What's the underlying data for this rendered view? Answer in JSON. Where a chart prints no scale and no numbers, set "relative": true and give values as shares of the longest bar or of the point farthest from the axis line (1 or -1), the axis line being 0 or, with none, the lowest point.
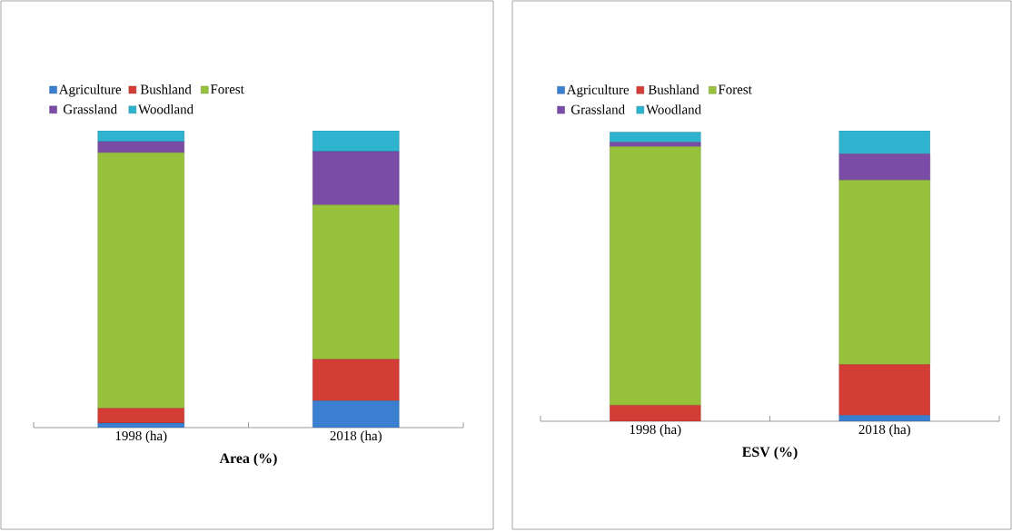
{
  "chart_data": [
    {
      "type": "bar",
      "stacked": true,
      "relative": true,
      "xlabel": "Area (%)",
      "legend": "top",
      "categories": [
        "1998 (ha)",
        "2018 (ha)"
      ],
      "series": [
        {
          "name": "Agriculture",
          "color": "#3a7fd0",
          "values": [
            0.015,
            0.09
          ]
        },
        {
          "name": "Bushland",
          "color": "#d43c36",
          "values": [
            0.05,
            0.14
          ]
        },
        {
          "name": "Forest",
          "color": "#96c23c",
          "values": [
            0.861,
            0.52
          ]
        },
        {
          "name": "Grassland",
          "color": "#7a4ca6",
          "values": [
            0.037,
            0.18
          ]
        },
        {
          "name": "Woodland",
          "color": "#2fb4d0",
          "values": [
            0.037,
            0.07
          ]
        }
      ]
    },
    {
      "type": "bar",
      "stacked": true,
      "relative": true,
      "xlabel": "ESV (%)",
      "legend": "top",
      "categories": [
        "1998 (ha)",
        "2018 (ha)"
      ],
      "series": [
        {
          "name": "Agriculture",
          "color": "#3a7fd0",
          "values": [
            null,
            0.02
          ]
        },
        {
          "name": "Bushland",
          "color": "#d43c36",
          "values": [
            0.055,
            0.175
          ]
        },
        {
          "name": "Forest",
          "color": "#96c23c",
          "values": [
            0.89,
            0.635
          ]
        },
        {
          "name": "Grassland",
          "color": "#7a4ca6",
          "values": [
            0.015,
            0.09
          ]
        },
        {
          "name": "Woodland",
          "color": "#2fb4d0",
          "values": [
            0.035,
            0.08
          ]
        }
      ]
    }
  ]
}
